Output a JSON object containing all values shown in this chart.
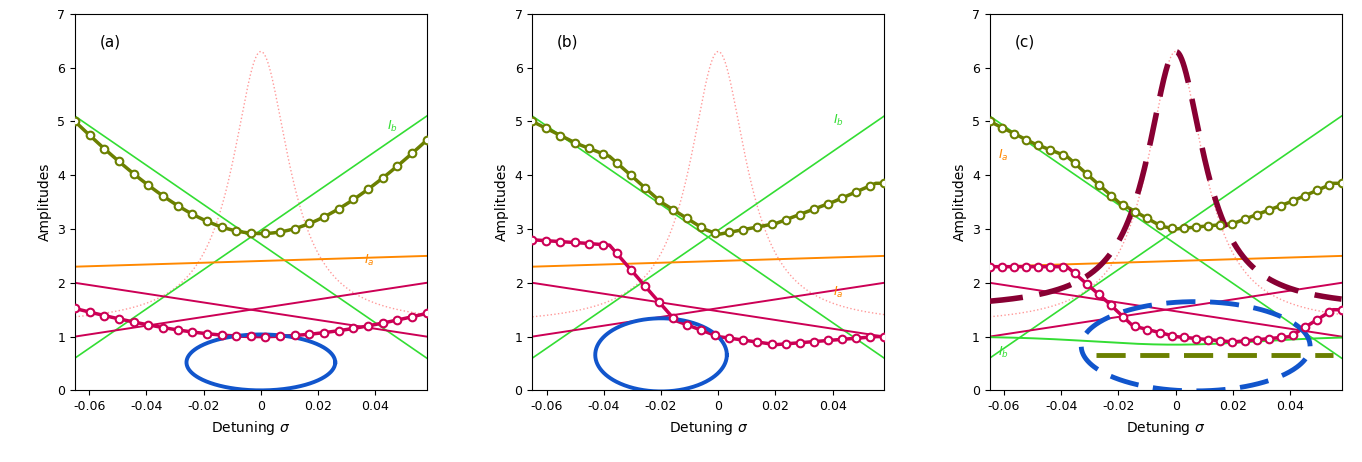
{
  "xlim": [
    -0.065,
    0.058
  ],
  "ylim": [
    0,
    7
  ],
  "xticks": [
    -0.06,
    -0.04,
    -0.02,
    0.0,
    0.02,
    0.04
  ],
  "yticks": [
    0,
    1,
    2,
    3,
    4,
    5,
    6,
    7
  ],
  "xlabel": "Detuning $\\sigma$",
  "ylabel": "Amplitudes",
  "panel_labels": [
    "(a)",
    "(b)",
    "(c)"
  ],
  "col_green_light": "#33dd33",
  "col_olive": "#6b8000",
  "col_crimson": "#cc0055",
  "col_blue": "#1155cc",
  "col_orange": "#ff8800",
  "col_dot": "#ff9999",
  "col_dark_crimson": "#880033",
  "figsize": [
    13.62,
    4.62
  ],
  "dpi": 100
}
